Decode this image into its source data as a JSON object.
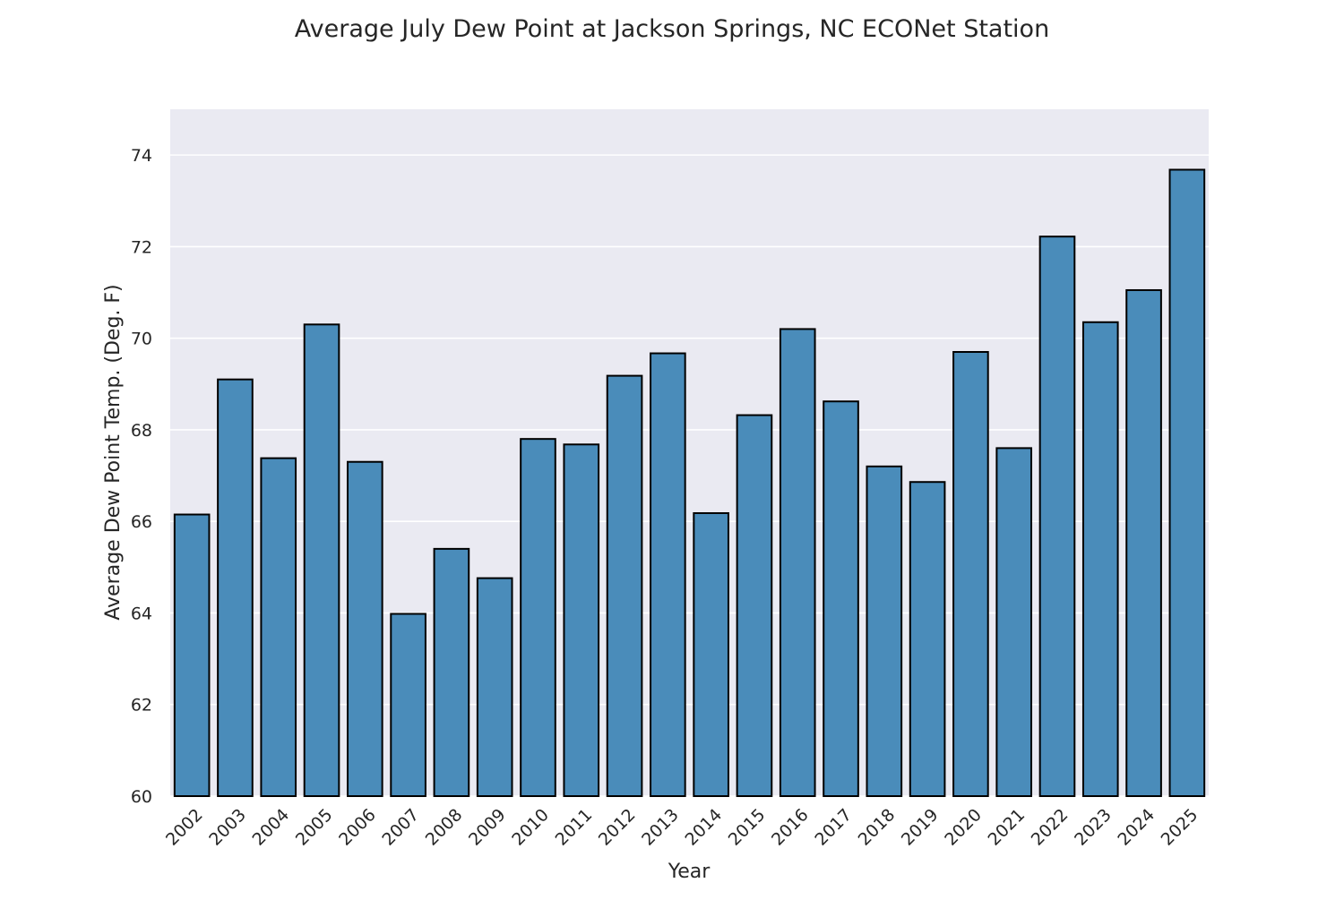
{
  "chart_data": {
    "type": "bar",
    "title": "Average July Dew Point at Jackson Springs, NC ECONet Station",
    "xlabel": "Year",
    "ylabel": "Average Dew Point Temp. (Deg. F)",
    "ylim": [
      60,
      75
    ],
    "yticks": [
      60,
      62,
      64,
      66,
      68,
      70,
      72,
      74
    ],
    "grid": true,
    "categories": [
      "2002",
      "2003",
      "2004",
      "2005",
      "2006",
      "2007",
      "2008",
      "2009",
      "2010",
      "2011",
      "2012",
      "2013",
      "2014",
      "2015",
      "2016",
      "2017",
      "2018",
      "2019",
      "2020",
      "2021",
      "2022",
      "2023",
      "2024",
      "2025"
    ],
    "values": [
      66.15,
      69.1,
      67.38,
      70.3,
      67.3,
      63.98,
      65.4,
      64.76,
      67.8,
      67.68,
      69.18,
      69.67,
      66.18,
      68.32,
      70.2,
      68.62,
      67.2,
      66.86,
      69.7,
      67.6,
      72.22,
      70.35,
      71.05,
      73.68
    ],
    "colors": {
      "bar_fill": "#4a8cba",
      "bar_edge": "#000000",
      "plot_background": "#eaeaf2",
      "grid": "#ffffff",
      "text": "#262626"
    }
  }
}
